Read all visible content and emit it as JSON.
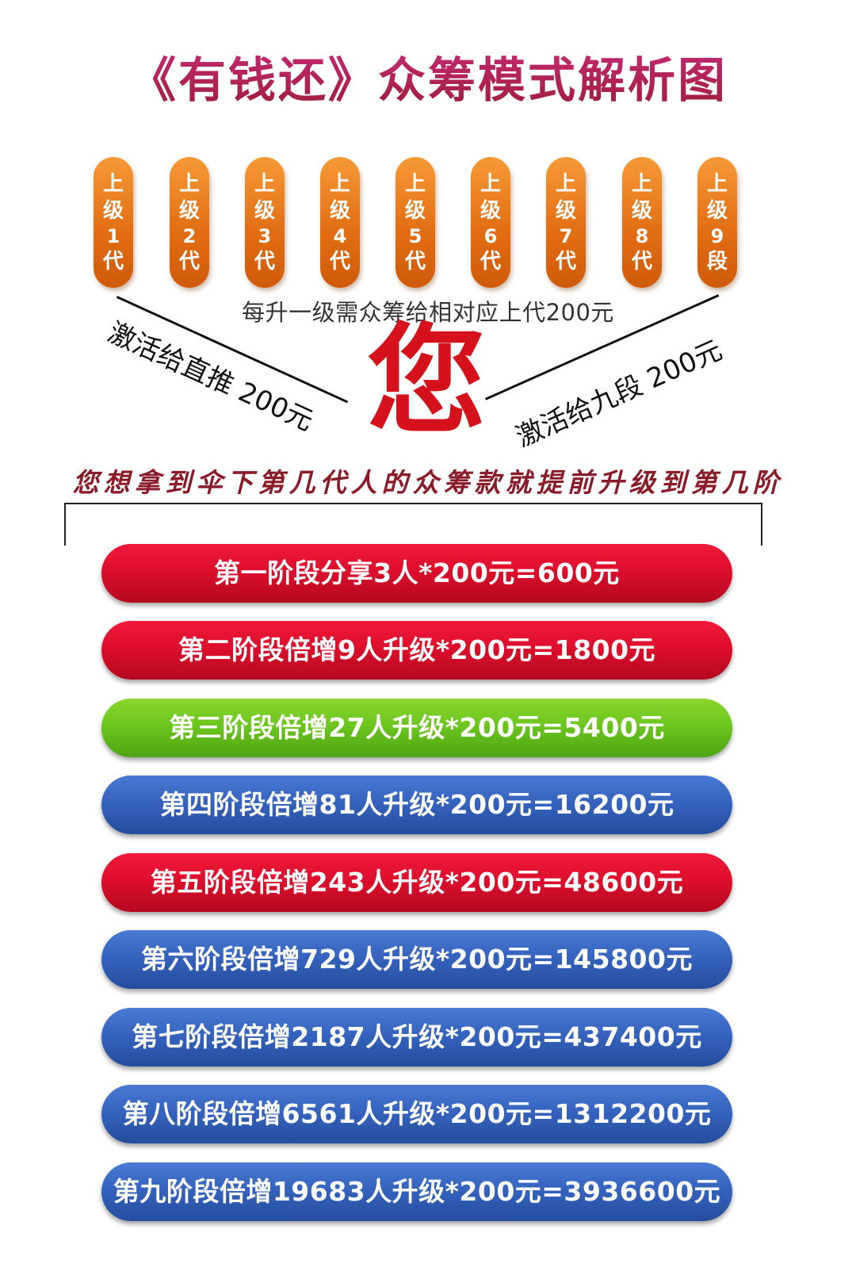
{
  "title": "《有钱还》众筹模式解析图",
  "generations": [
    {
      "c1": "上",
      "c2": "级",
      "num": "1",
      "c4": "代"
    },
    {
      "c1": "上",
      "c2": "级",
      "num": "2",
      "c4": "代"
    },
    {
      "c1": "上",
      "c2": "级",
      "num": "3",
      "c4": "代"
    },
    {
      "c1": "上",
      "c2": "级",
      "num": "4",
      "c4": "代"
    },
    {
      "c1": "上",
      "c2": "级",
      "num": "5",
      "c4": "代"
    },
    {
      "c1": "上",
      "c2": "级",
      "num": "6",
      "c4": "代"
    },
    {
      "c1": "上",
      "c2": "级",
      "num": "7",
      "c4": "代"
    },
    {
      "c1": "上",
      "c2": "级",
      "num": "8",
      "c4": "代"
    },
    {
      "c1": "上",
      "c2": "级",
      "num": "9",
      "c4": "段"
    }
  ],
  "upgrade_text": "每升一级需众筹给相对应上代200元",
  "activate_direct": "激活给直推 200元",
  "activate_ninth": "激活给九段 200元",
  "you": "您",
  "advance_text": "您想拿到伞下第几代人的众筹款就提前升级到第几阶",
  "stages": [
    {
      "label": "第一阶段分享3人*200元=600元",
      "color": "red"
    },
    {
      "label": "第二阶段倍增9人升级*200元=1800元",
      "color": "red"
    },
    {
      "label": "第三阶段倍增27人升级*200元=5400元",
      "color": "green"
    },
    {
      "label": "第四阶段倍增81人升级*200元=16200元",
      "color": "blue"
    },
    {
      "label": "第五阶段倍增243人升级*200元=48600元",
      "color": "red"
    },
    {
      "label": "第六阶段倍增729人升级*200元=145800元",
      "color": "blue"
    },
    {
      "label": "第七阶段倍增2187人升级*200元=437400元",
      "color": "blue"
    },
    {
      "label": "第八阶段倍增6561人升级*200元=1312200元",
      "color": "blue"
    },
    {
      "label": "第九阶段倍增19683人升级*200元=3936600元",
      "color": "blue"
    }
  ]
}
